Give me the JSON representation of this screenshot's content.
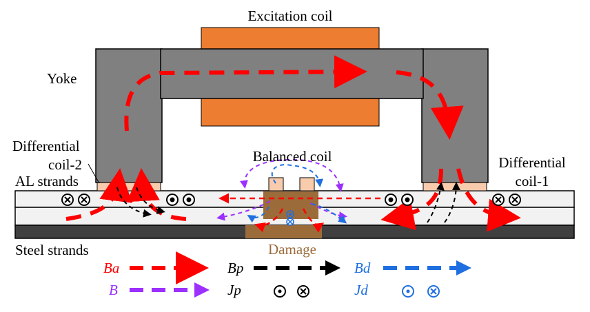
{
  "labels": {
    "excitation_coil": "Excitation coil",
    "yoke": "Yoke",
    "differential_coil_2_line1": "Differential",
    "differential_coil_2_line2": "coil-2",
    "differential_coil_1_line1": "Differential",
    "differential_coil_1_line2": "coil-1",
    "balanced_coil": "Balanced coil",
    "al_strands": "AL strands",
    "steel_strands": "Steel strands",
    "damage": "Damage"
  },
  "legend": {
    "ba": "Ba",
    "bp": "Bp",
    "bd": "Bd",
    "b": "B",
    "jp": "Jp",
    "jd": "Jd"
  },
  "colors": {
    "ba": "#ff0000",
    "bp": "#000000",
    "bd": "#1f6fe0",
    "b": "#9b30ff",
    "yoke": "#808080",
    "coil": "#ed7d31",
    "diff_coil": "#f8cbad",
    "steel": "#404040",
    "damage": "#9c6b3a",
    "strand": "#f2f2f2"
  }
}
